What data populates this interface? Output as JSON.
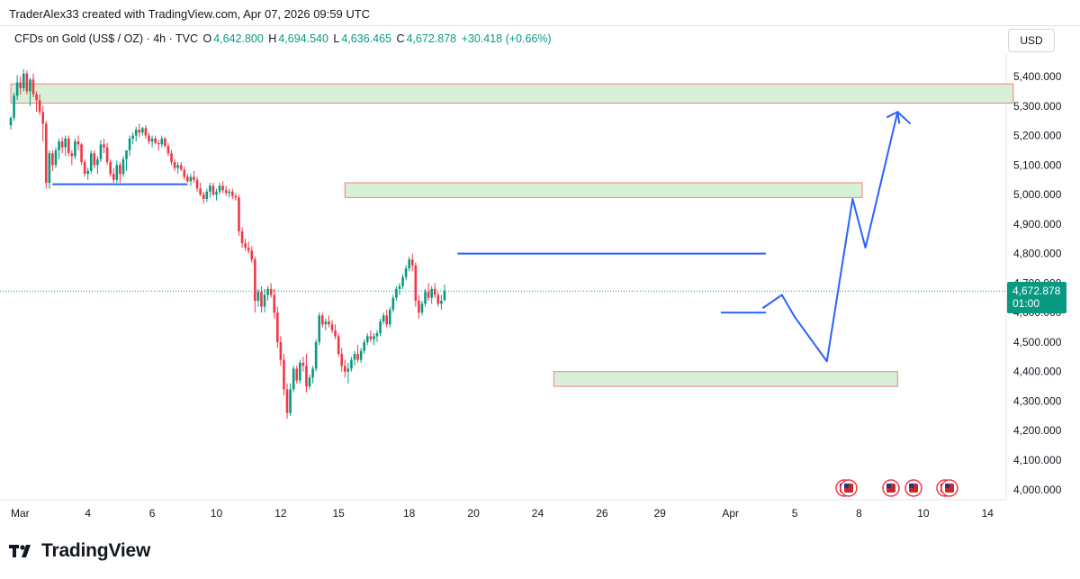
{
  "header": {
    "attribution": "TraderAlex33 created with TradingView.com, Apr 07, 2026 09:59 UTC"
  },
  "legend": {
    "symbol": "CFDs on Gold (US$ / OZ) · 4h · TVC",
    "open_label": "O",
    "open": "4,642.800",
    "high_label": "H",
    "high": "4,694.540",
    "low_label": "L",
    "low": "4,636.465",
    "close_label": "C",
    "close": "4,672.878",
    "change": "+30.418 (+0.66%)"
  },
  "currency": "USD",
  "price_badge": {
    "price": "4,672.878",
    "countdown": "01:00"
  },
  "footer": {
    "brand": "TradingView"
  },
  "colors": {
    "up": "#089981",
    "down": "#f23645",
    "zone_fill": "#d8f0d8",
    "zone_border": "#f08080",
    "projection": "#2962ff",
    "grid": "#f0f3fa"
  },
  "chart_data": {
    "type": "candlestick",
    "symbol": "CFDs on Gold (US$ / OZ)",
    "timeframe": "4h",
    "y_ticks": [
      4000,
      4100,
      4200,
      4300,
      4400,
      4500,
      4600,
      4700,
      4800,
      4900,
      5000,
      5100,
      5200,
      5300,
      5400
    ],
    "y_tick_labels": [
      "4,000.000",
      "4,100.000",
      "4,200.000",
      "4,300.000",
      "4,400.000",
      "4,500.000",
      "4,600.000",
      "4,700.000",
      "4,800.000",
      "4,900.000",
      "5,000.000",
      "5,100.000",
      "5,200.000",
      "5,300.000",
      "5,400.000"
    ],
    "x_ticks": [
      {
        "label": "Mar",
        "bar": 0
      },
      {
        "label": "4",
        "bar": 24
      },
      {
        "label": "6",
        "bar": 44
      },
      {
        "label": "10",
        "bar": 64
      },
      {
        "label": "12",
        "bar": 84
      },
      {
        "label": "15",
        "bar": 102
      },
      {
        "label": "18",
        "bar": 124
      },
      {
        "label": "20",
        "bar": 144
      },
      {
        "label": "24",
        "bar": 164
      },
      {
        "label": "26",
        "bar": 184
      },
      {
        "label": "29",
        "bar": 202
      },
      {
        "label": "Apr",
        "bar": 224
      },
      {
        "label": "5",
        "bar": 244
      },
      {
        "label": "8",
        "bar": 264
      },
      {
        "label": "10",
        "bar": 284
      },
      {
        "label": "14",
        "bar": 304
      }
    ],
    "candles": [
      [
        5235,
        5265,
        5220,
        5260
      ],
      [
        5260,
        5345,
        5250,
        5335
      ],
      [
        5335,
        5405,
        5320,
        5380
      ],
      [
        5380,
        5400,
        5340,
        5360
      ],
      [
        5360,
        5425,
        5350,
        5410
      ],
      [
        5410,
        5420,
        5340,
        5350
      ],
      [
        5350,
        5395,
        5300,
        5390
      ],
      [
        5390,
        5410,
        5330,
        5340
      ],
      [
        5340,
        5350,
        5280,
        5320
      ],
      [
        5320,
        5340,
        5270,
        5280
      ],
      [
        5280,
        5300,
        5180,
        5240
      ],
      [
        5240,
        5250,
        5020,
        5040
      ],
      [
        5040,
        5150,
        5020,
        5140
      ],
      [
        5140,
        5150,
        5080,
        5100
      ],
      [
        5100,
        5160,
        5090,
        5150
      ],
      [
        5150,
        5190,
        5120,
        5180
      ],
      [
        5180,
        5195,
        5140,
        5160
      ],
      [
        5160,
        5200,
        5130,
        5190
      ],
      [
        5190,
        5200,
        5130,
        5140
      ],
      [
        5140,
        5150,
        5100,
        5130
      ],
      [
        5130,
        5190,
        5120,
        5180
      ],
      [
        5180,
        5200,
        5150,
        5170
      ],
      [
        5170,
        5175,
        5100,
        5110
      ],
      [
        5110,
        5120,
        5060,
        5070
      ],
      [
        5070,
        5090,
        5050,
        5080
      ],
      [
        5080,
        5150,
        5070,
        5140
      ],
      [
        5140,
        5150,
        5090,
        5100
      ],
      [
        5100,
        5130,
        5070,
        5120
      ],
      [
        5120,
        5185,
        5110,
        5170
      ],
      [
        5170,
        5190,
        5140,
        5160
      ],
      [
        5160,
        5175,
        5100,
        5110
      ],
      [
        5110,
        5120,
        5060,
        5070
      ],
      [
        5070,
        5090,
        5040,
        5050
      ],
      [
        5050,
        5115,
        5040,
        5100
      ],
      [
        5100,
        5110,
        5040,
        5070
      ],
      [
        5070,
        5130,
        5060,
        5120
      ],
      [
        5120,
        5140,
        5080,
        5150
      ],
      [
        5150,
        5200,
        5130,
        5190
      ],
      [
        5190,
        5210,
        5170,
        5200
      ],
      [
        5200,
        5230,
        5180,
        5220
      ],
      [
        5220,
        5240,
        5195,
        5210
      ],
      [
        5210,
        5230,
        5200,
        5225
      ],
      [
        5225,
        5235,
        5190,
        5200
      ],
      [
        5200,
        5210,
        5170,
        5180
      ],
      [
        5180,
        5200,
        5160,
        5190
      ],
      [
        5190,
        5200,
        5170,
        5175
      ],
      [
        5175,
        5185,
        5150,
        5170
      ],
      [
        5170,
        5200,
        5160,
        5190
      ],
      [
        5190,
        5195,
        5160,
        5165
      ],
      [
        5165,
        5175,
        5130,
        5140
      ],
      [
        5140,
        5150,
        5100,
        5110
      ],
      [
        5110,
        5120,
        5080,
        5090
      ],
      [
        5090,
        5110,
        5070,
        5100
      ],
      [
        5100,
        5110,
        5080,
        5085
      ],
      [
        5085,
        5095,
        5050,
        5060
      ],
      [
        5060,
        5070,
        5040,
        5045
      ],
      [
        5045,
        5070,
        5030,
        5060
      ],
      [
        5060,
        5080,
        5040,
        5050
      ],
      [
        5050,
        5060,
        5010,
        5020
      ],
      [
        5020,
        5040,
        4995,
        5000
      ],
      [
        5000,
        5010,
        4970,
        4985
      ],
      [
        4985,
        5020,
        4975,
        5010
      ],
      [
        5010,
        5040,
        4990,
        5030
      ],
      [
        5030,
        5040,
        4995,
        5000
      ],
      [
        5000,
        5020,
        4980,
        5010
      ],
      [
        5010,
        5040,
        5000,
        5030
      ],
      [
        5030,
        5045,
        5005,
        5015
      ],
      [
        5015,
        5030,
        4995,
        5005
      ],
      [
        5005,
        5020,
        4990,
        5010
      ],
      [
        5010,
        5020,
        4985,
        4995
      ],
      [
        4995,
        5005,
        4980,
        4990
      ],
      [
        4990,
        5000,
        4860,
        4875
      ],
      [
        4875,
        4890,
        4820,
        4835
      ],
      [
        4835,
        4850,
        4810,
        4820
      ],
      [
        4820,
        4840,
        4800,
        4810
      ],
      [
        4810,
        4825,
        4770,
        4780
      ],
      [
        4780,
        4790,
        4600,
        4640
      ],
      [
        4640,
        4680,
        4620,
        4670
      ],
      [
        4670,
        4690,
        4600,
        4620
      ],
      [
        4620,
        4680,
        4600,
        4660
      ],
      [
        4660,
        4690,
        4640,
        4680
      ],
      [
        4680,
        4700,
        4650,
        4660
      ],
      [
        4660,
        4680,
        4580,
        4600
      ],
      [
        4600,
        4620,
        4480,
        4500
      ],
      [
        4500,
        4520,
        4420,
        4440
      ],
      [
        4440,
        4460,
        4320,
        4340
      ],
      [
        4340,
        4360,
        4240,
        4260
      ],
      [
        4260,
        4360,
        4250,
        4340
      ],
      [
        4340,
        4420,
        4330,
        4410
      ],
      [
        4410,
        4420,
        4360,
        4370
      ],
      [
        4370,
        4440,
        4360,
        4430
      ],
      [
        4430,
        4450,
        4400,
        4420
      ],
      [
        4420,
        4460,
        4330,
        4350
      ],
      [
        4350,
        4390,
        4340,
        4380
      ],
      [
        4380,
        4420,
        4360,
        4410
      ],
      [
        4410,
        4510,
        4400,
        4500
      ],
      [
        4500,
        4600,
        4490,
        4590
      ],
      [
        4590,
        4600,
        4550,
        4560
      ],
      [
        4560,
        4580,
        4540,
        4570
      ],
      [
        4570,
        4590,
        4550,
        4560
      ],
      [
        4560,
        4575,
        4530,
        4540
      ],
      [
        4540,
        4560,
        4510,
        4520
      ],
      [
        4520,
        4530,
        4450,
        4460
      ],
      [
        4460,
        4480,
        4400,
        4420
      ],
      [
        4420,
        4440,
        4380,
        4400
      ],
      [
        4400,
        4430,
        4360,
        4410
      ],
      [
        4410,
        4450,
        4400,
        4440
      ],
      [
        4440,
        4470,
        4420,
        4460
      ],
      [
        4460,
        4490,
        4430,
        4440
      ],
      [
        4440,
        4480,
        4430,
        4470
      ],
      [
        4470,
        4510,
        4460,
        4500
      ],
      [
        4500,
        4530,
        4490,
        4520
      ],
      [
        4520,
        4540,
        4500,
        4510
      ],
      [
        4510,
        4530,
        4490,
        4520
      ],
      [
        4520,
        4540,
        4500,
        4530
      ],
      [
        4530,
        4580,
        4520,
        4570
      ],
      [
        4570,
        4600,
        4560,
        4590
      ],
      [
        4590,
        4610,
        4550,
        4560
      ],
      [
        4560,
        4620,
        4550,
        4610
      ],
      [
        4610,
        4660,
        4600,
        4650
      ],
      [
        4650,
        4690,
        4640,
        4680
      ],
      [
        4680,
        4700,
        4660,
        4690
      ],
      [
        4690,
        4730,
        4680,
        4720
      ],
      [
        4720,
        4760,
        4710,
        4750
      ],
      [
        4750,
        4790,
        4740,
        4780
      ],
      [
        4780,
        4800,
        4740,
        4760
      ],
      [
        4760,
        4770,
        4620,
        4640
      ],
      [
        4640,
        4660,
        4580,
        4600
      ],
      [
        4600,
        4640,
        4590,
        4630
      ],
      [
        4630,
        4680,
        4620,
        4670
      ],
      [
        4670,
        4700,
        4640,
        4650
      ],
      [
        4650,
        4690,
        4630,
        4680
      ],
      [
        4680,
        4700,
        4650,
        4660
      ],
      [
        4660,
        4670,
        4620,
        4630
      ],
      [
        4630,
        4660,
        4610,
        4640
      ],
      [
        4642.8,
        4694.54,
        4636.465,
        4672.878
      ]
    ],
    "zones": [
      {
        "from_bar": 0,
        "to_bar": 312,
        "low": 5310,
        "high": 5375
      },
      {
        "from_bar": 104,
        "to_bar": 265,
        "low": 4990,
        "high": 5040
      },
      {
        "from_bar": 169,
        "to_bar": 276,
        "low": 4350,
        "high": 4400
      }
    ],
    "horizontal_lines": [
      {
        "from_bar": 13,
        "to_bar": 55,
        "price": 5035
      },
      {
        "from_bar": 139,
        "to_bar": 235,
        "price": 4800
      },
      {
        "from_bar": 221,
        "to_bar": 235,
        "price": 4600
      }
    ],
    "projection_path": [
      [
        234,
        4615
      ],
      [
        240,
        4660
      ],
      [
        244,
        4585
      ],
      [
        254,
        4435
      ],
      [
        262,
        4985
      ],
      [
        266,
        4820
      ],
      [
        276,
        5280
      ],
      [
        280,
        5240
      ]
    ],
    "last_price": 4672.878
  }
}
